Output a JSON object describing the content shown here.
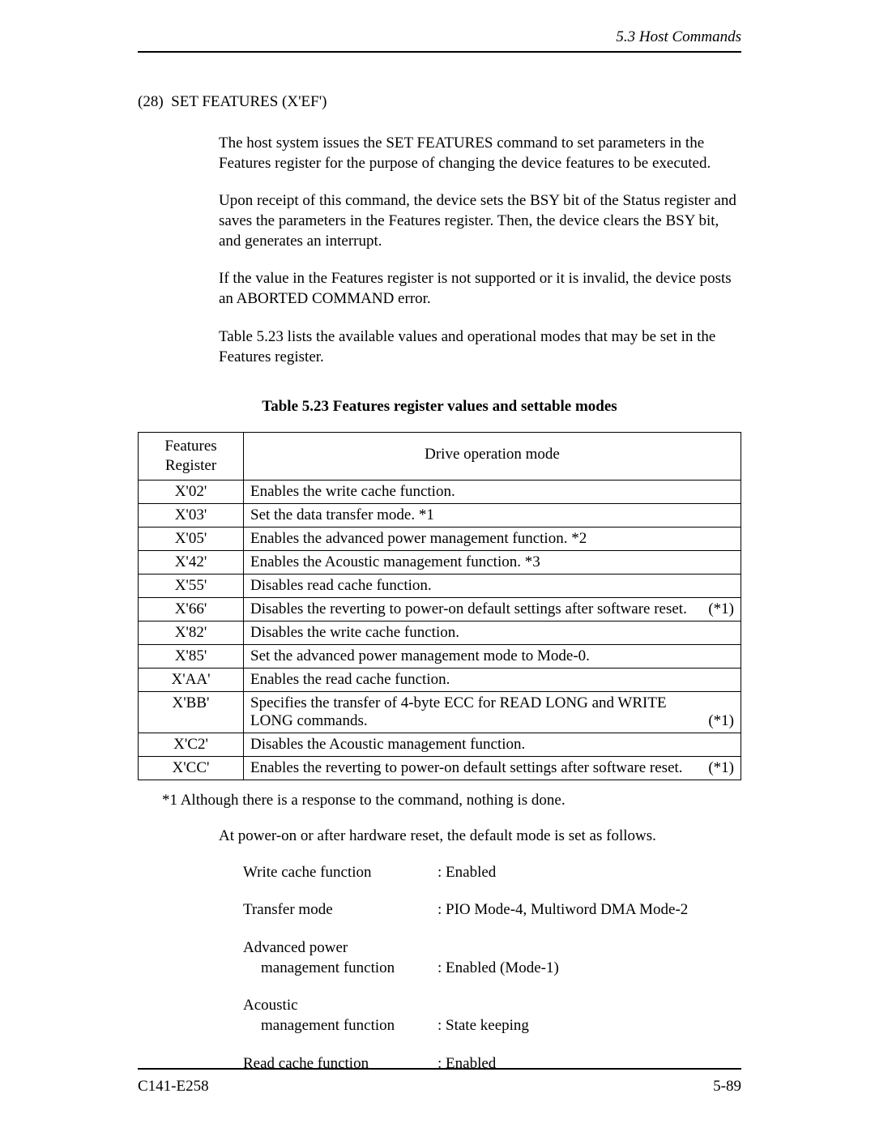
{
  "header": {
    "section": "5.3  Host Commands"
  },
  "section": {
    "number": "(28)",
    "title": "SET FEATURES (X'EF')"
  },
  "paragraphs": {
    "p1": "The host system issues the SET FEATURES command to set parameters in the Features register for the purpose of changing the device features to be executed.",
    "p2": "Upon receipt of this command, the device sets the BSY bit of the Status register and saves the parameters in the Features register.  Then, the device clears the BSY bit, and generates an interrupt.",
    "p3": "If the value in the Features register is not supported or it is invalid, the device posts an ABORTED COMMAND error.",
    "p4": "Table 5.23 lists the available values and operational modes that may be set in the Features register."
  },
  "table": {
    "caption": "Table 5.23  Features register values and settable modes",
    "col_features": "Features Register",
    "col_mode": "Drive operation mode",
    "rows": [
      {
        "reg": "X'02'",
        "mode": "Enables the write cache function.",
        "suffix": ""
      },
      {
        "reg": "X'03'",
        "mode": "Set the data transfer mode.  *1",
        "suffix": ""
      },
      {
        "reg": "X'05'",
        "mode": "Enables the advanced power management function.  *2",
        "suffix": ""
      },
      {
        "reg": "X'42'",
        "mode": "Enables the Acoustic management function.  *3",
        "suffix": ""
      },
      {
        "reg": "X'55'",
        "mode": "Disables read cache function.",
        "suffix": ""
      },
      {
        "reg": "X'66'",
        "mode": "Disables the reverting to power-on default settings after software reset.",
        "suffix": "(*1)"
      },
      {
        "reg": "X'82'",
        "mode": "Disables the write cache function.",
        "suffix": ""
      },
      {
        "reg": "X'85'",
        "mode": "Set the advanced power management mode to Mode-0.",
        "suffix": ""
      },
      {
        "reg": "X'AA'",
        "mode": "Enables the read cache function.",
        "suffix": ""
      },
      {
        "reg": "X'BB'",
        "mode": "Specifies the transfer of 4-byte ECC for READ LONG and WRITE LONG commands.",
        "suffix": "(*1)"
      },
      {
        "reg": "X'C2'",
        "mode": "Disables the Acoustic management function.",
        "suffix": ""
      },
      {
        "reg": "X'CC'",
        "mode": "Enables the reverting to power-on default settings after software reset.",
        "suffix": "(*1)"
      }
    ]
  },
  "note1": "*1  Although there is a response to the command, nothing is done.",
  "note_para": "At power-on or after hardware reset, the default mode is set as follows.",
  "defaults": [
    {
      "label1": "Write cache function",
      "label2": "",
      "value": ":  Enabled"
    },
    {
      "label1": "Transfer mode",
      "label2": "",
      "value": ":  PIO Mode-4, Multiword DMA Mode-2"
    },
    {
      "label1": "Advanced power",
      "label2": "management function",
      "value": ":  Enabled (Mode-1)"
    },
    {
      "label1": "Acoustic",
      "label2": "management function",
      "value": ":  State keeping"
    },
    {
      "label1": "Read cache function",
      "label2": "",
      "value": ":  Enabled"
    }
  ],
  "footer": {
    "left": "C141-E258",
    "right": "5-89"
  }
}
